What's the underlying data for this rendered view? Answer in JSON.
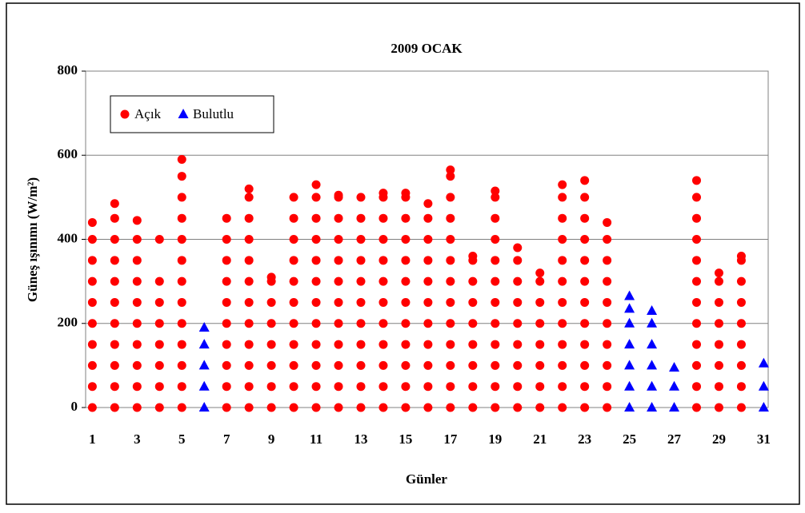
{
  "chart_data": {
    "type": "scatter",
    "title": "2009 OCAK",
    "xlabel": "Günler",
    "ylabel": "Güneş ışınımı (W/m²)",
    "xlim": [
      0.7,
      31.2
    ],
    "xticks": [
      1,
      3,
      5,
      7,
      9,
      11,
      13,
      15,
      17,
      19,
      21,
      23,
      25,
      27,
      29,
      31
    ],
    "ylim": [
      0,
      800
    ],
    "yticks": [
      0,
      200,
      400,
      600,
      800
    ],
    "grid": true,
    "legend": "upper left",
    "series": [
      {
        "name": "Açık",
        "color": "#ff0000",
        "marker": "circle",
        "x": [
          1,
          1,
          1,
          1,
          1,
          1,
          1,
          1,
          1,
          1,
          2,
          2,
          2,
          2,
          2,
          2,
          2,
          2,
          2,
          2,
          2,
          3,
          3,
          3,
          3,
          3,
          3,
          3,
          3,
          3,
          3,
          4,
          4,
          4,
          4,
          4,
          4,
          4,
          4,
          5,
          5,
          5,
          5,
          5,
          5,
          5,
          5,
          5,
          5,
          5,
          5,
          5,
          7,
          7,
          7,
          7,
          7,
          7,
          7,
          7,
          7,
          7,
          8,
          8,
          8,
          8,
          8,
          8,
          8,
          8,
          8,
          8,
          8,
          8,
          9,
          9,
          9,
          9,
          9,
          9,
          9,
          9,
          10,
          10,
          10,
          10,
          10,
          10,
          10,
          10,
          10,
          10,
          10,
          11,
          11,
          11,
          11,
          11,
          11,
          11,
          11,
          11,
          11,
          11,
          11,
          12,
          12,
          12,
          12,
          12,
          12,
          12,
          12,
          12,
          12,
          12,
          12,
          13,
          13,
          13,
          13,
          13,
          13,
          13,
          13,
          13,
          13,
          13,
          14,
          14,
          14,
          14,
          14,
          14,
          14,
          14,
          14,
          14,
          14,
          14,
          15,
          15,
          15,
          15,
          15,
          15,
          15,
          15,
          15,
          15,
          15,
          15,
          16,
          16,
          16,
          16,
          16,
          16,
          16,
          16,
          16,
          16,
          16,
          17,
          17,
          17,
          17,
          17,
          17,
          17,
          17,
          17,
          17,
          17,
          17,
          17,
          18,
          18,
          18,
          18,
          18,
          18,
          18,
          18,
          18,
          19,
          19,
          19,
          19,
          19,
          19,
          19,
          19,
          19,
          19,
          19,
          19,
          20,
          20,
          20,
          20,
          20,
          20,
          20,
          20,
          20,
          21,
          21,
          21,
          21,
          21,
          21,
          21,
          21,
          22,
          22,
          22,
          22,
          22,
          22,
          22,
          22,
          22,
          22,
          22,
          22,
          23,
          23,
          23,
          23,
          23,
          23,
          23,
          23,
          23,
          23,
          23,
          23,
          24,
          24,
          24,
          24,
          24,
          24,
          24,
          24,
          24,
          24,
          28,
          28,
          28,
          28,
          28,
          28,
          28,
          28,
          28,
          28,
          28,
          28,
          29,
          29,
          29,
          29,
          29,
          29,
          29,
          29,
          30,
          30,
          30,
          30,
          30,
          30,
          30,
          30,
          30
        ],
        "values": [
          0,
          50,
          100,
          150,
          200,
          250,
          300,
          350,
          400,
          440,
          0,
          50,
          100,
          150,
          200,
          250,
          300,
          350,
          400,
          450,
          485,
          0,
          50,
          100,
          150,
          200,
          250,
          300,
          350,
          400,
          445,
          0,
          50,
          100,
          150,
          200,
          250,
          300,
          400,
          0,
          50,
          100,
          150,
          200,
          250,
          300,
          350,
          400,
          450,
          500,
          550,
          590,
          0,
          50,
          100,
          150,
          200,
          250,
          300,
          350,
          400,
          450,
          0,
          50,
          100,
          150,
          200,
          250,
          300,
          350,
          400,
          450,
          500,
          520,
          0,
          50,
          100,
          150,
          200,
          250,
          300,
          310,
          0,
          50,
          100,
          150,
          200,
          250,
          300,
          350,
          400,
          450,
          500,
          0,
          50,
          100,
          150,
          200,
          250,
          300,
          350,
          400,
          450,
          500,
          530,
          0,
          50,
          100,
          150,
          200,
          250,
          300,
          350,
          400,
          450,
          500,
          505,
          0,
          50,
          100,
          150,
          200,
          250,
          300,
          350,
          400,
          450,
          500,
          0,
          50,
          100,
          150,
          200,
          250,
          300,
          350,
          400,
          450,
          500,
          510,
          0,
          50,
          100,
          150,
          200,
          250,
          300,
          350,
          400,
          450,
          500,
          510,
          0,
          50,
          100,
          150,
          200,
          250,
          300,
          350,
          400,
          450,
          485,
          0,
          50,
          100,
          150,
          200,
          250,
          300,
          350,
          400,
          450,
          500,
          550,
          565,
          0,
          50,
          100,
          150,
          200,
          250,
          300,
          350,
          360,
          0,
          50,
          100,
          150,
          200,
          250,
          300,
          350,
          400,
          450,
          500,
          515,
          0,
          50,
          100,
          150,
          200,
          250,
          300,
          350,
          380,
          0,
          50,
          100,
          150,
          200,
          250,
          300,
          320,
          0,
          50,
          100,
          150,
          200,
          250,
          300,
          350,
          400,
          450,
          500,
          530,
          0,
          50,
          100,
          150,
          200,
          250,
          300,
          350,
          400,
          450,
          500,
          540,
          0,
          50,
          100,
          150,
          200,
          250,
          300,
          350,
          400,
          440,
          0,
          50,
          100,
          150,
          200,
          250,
          300,
          350,
          400,
          450,
          500,
          540,
          0,
          50,
          100,
          150,
          200,
          250,
          300,
          320,
          0,
          50,
          100,
          150,
          200,
          250,
          300,
          350,
          360
        ]
      },
      {
        "name": "Bulutlu",
        "color": "#0000ff",
        "marker": "triangle",
        "x": [
          6,
          6,
          6,
          6,
          6,
          25,
          25,
          25,
          25,
          25,
          25,
          25,
          26,
          26,
          26,
          26,
          26,
          26,
          27,
          27,
          27,
          31,
          31,
          31
        ],
        "values": [
          0,
          50,
          100,
          150,
          190,
          0,
          50,
          100,
          150,
          200,
          235,
          265,
          0,
          50,
          100,
          150,
          200,
          230,
          0,
          50,
          95,
          0,
          50,
          105
        ]
      }
    ]
  }
}
